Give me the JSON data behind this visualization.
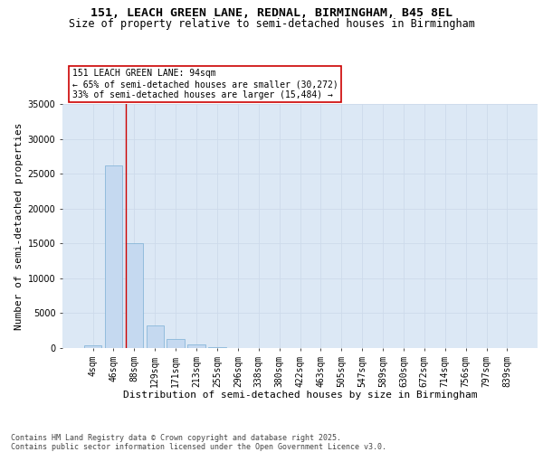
{
  "title_line1": "151, LEACH GREEN LANE, REDNAL, BIRMINGHAM, B45 8EL",
  "title_line2": "Size of property relative to semi-detached houses in Birmingham",
  "xlabel": "Distribution of semi-detached houses by size in Birmingham",
  "ylabel": "Number of semi-detached properties",
  "categories": [
    "4sqm",
    "46sqm",
    "88sqm",
    "129sqm",
    "171sqm",
    "213sqm",
    "255sqm",
    "296sqm",
    "338sqm",
    "380sqm",
    "422sqm",
    "463sqm",
    "505sqm",
    "547sqm",
    "589sqm",
    "630sqm",
    "672sqm",
    "714sqm",
    "756sqm",
    "797sqm",
    "839sqm"
  ],
  "values": [
    420,
    26200,
    15100,
    3200,
    1280,
    480,
    180,
    0,
    0,
    0,
    0,
    0,
    0,
    0,
    0,
    0,
    0,
    0,
    0,
    0,
    0
  ],
  "bar_color": "#c5d9f0",
  "bar_edge_color": "#7aafd4",
  "red_line_index": 2,
  "annotation_line1": "151 LEACH GREEN LANE: 94sqm",
  "annotation_line2": "← 65% of semi-detached houses are smaller (30,272)",
  "annotation_line3": "33% of semi-detached houses are larger (15,484) →",
  "annotation_box_bg": "#ffffff",
  "annotation_box_edge": "#cc0000",
  "ylim": [
    0,
    35000
  ],
  "yticks": [
    0,
    5000,
    10000,
    15000,
    20000,
    25000,
    30000,
    35000
  ],
  "grid_color": "#cddaeb",
  "bg_color": "#dce8f5",
  "footer_line1": "Contains HM Land Registry data © Crown copyright and database right 2025.",
  "footer_line2": "Contains public sector information licensed under the Open Government Licence v3.0.",
  "title_fontsize": 9.5,
  "subtitle_fontsize": 8.5,
  "axis_label_fontsize": 8,
  "tick_fontsize": 7,
  "annotation_fontsize": 7,
  "footer_fontsize": 6
}
